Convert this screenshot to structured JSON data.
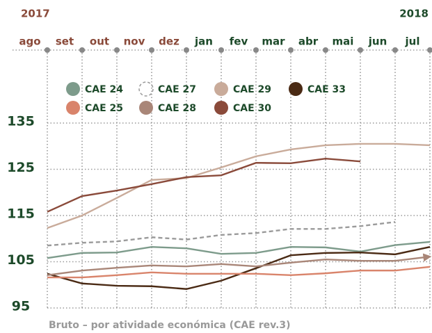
{
  "chart_data": {
    "type": "line",
    "categories": [
      "ago",
      "set",
      "out",
      "nov",
      "dez",
      "jan",
      "fev",
      "mar",
      "abr",
      "mai",
      "jun",
      "jul"
    ],
    "years": [
      {
        "label": "2017",
        "start": 0,
        "color": "#8a4a3a"
      },
      {
        "label": "2018",
        "start": 5,
        "color": "#1d4a2a"
      }
    ],
    "ylim": [
      95,
      135
    ],
    "yticks": [
      95,
      105,
      115,
      125,
      135
    ],
    "grid": true,
    "footnote": "Bruto – por atividade económica (CAE rev.3)",
    "series": [
      {
        "name": "CAE 24",
        "color": "#7d9b8b",
        "values": [
          105.8,
          106.9,
          107.0,
          108.2,
          107.9,
          106.7,
          106.9,
          108.2,
          108.1,
          107.2,
          108.6,
          109.3
        ]
      },
      {
        "name": "CAE 27",
        "color": "#9a9a9a",
        "dashed": true,
        "values": [
          108.5,
          109.1,
          109.4,
          110.3,
          109.8,
          110.8,
          111.2,
          112.1,
          112.1,
          112.7,
          113.6,
          null
        ]
      },
      {
        "name": "CAE 29",
        "color": "#c9ab9a",
        "values": [
          112.3,
          115.0,
          118.8,
          122.7,
          123.1,
          125.4,
          127.8,
          129.3,
          130.2,
          130.5,
          130.5,
          130.2
        ]
      },
      {
        "name": "CAE 33",
        "color": "#4a2a14",
        "values": [
          102.4,
          100.3,
          99.8,
          99.7,
          99.1,
          100.9,
          103.6,
          106.4,
          106.9,
          107.0,
          106.6,
          108.2
        ]
      },
      {
        "name": "CAE 25",
        "color": "#d9846b",
        "values": [
          101.6,
          101.6,
          102.1,
          102.7,
          102.4,
          102.4,
          102.4,
          102.1,
          102.5,
          103.1,
          103.1,
          103.9
        ]
      },
      {
        "name": "CAE 28",
        "color": "#a98678",
        "arrow": true,
        "values": [
          102.1,
          103.1,
          103.7,
          104.2,
          104.0,
          104.5,
          104.0,
          104.8,
          105.5,
          105.2,
          105.2,
          106.1
        ]
      },
      {
        "name": "CAE 30",
        "color": "#8a4a3a",
        "values": [
          115.8,
          119.2,
          120.4,
          121.8,
          123.3,
          123.7,
          126.4,
          126.3,
          127.3,
          126.7,
          null,
          null
        ]
      }
    ]
  }
}
